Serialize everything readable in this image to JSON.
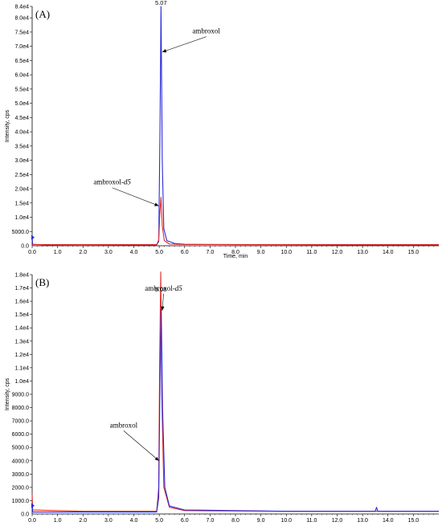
{
  "colors": {
    "blue": "#2a2ad8",
    "red": "#e02a2a",
    "axis": "#000000"
  },
  "chart_data": [
    {
      "type": "line",
      "panel_label": "(A)",
      "ylabel": "Intensity, cps",
      "xlabel": "Time, min",
      "xlim": [
        0,
        16
      ],
      "ylim": [
        0,
        84000
      ],
      "x_ticks": [
        0.0,
        1.0,
        2.0,
        3.0,
        4.0,
        5.0,
        6.0,
        7.0,
        8.0,
        9.0,
        10.0,
        11.0,
        12.0,
        13.0,
        14.0,
        15.0
      ],
      "x_tick_labels": [
        "0.0",
        "1.0",
        "2.0",
        "3.0",
        "4.0",
        "5.0",
        "6.0",
        "7.0",
        "8.0",
        "9.0",
        "10.0",
        "11.0",
        "12.0",
        "13.0",
        "14.0",
        "15.0"
      ],
      "y_ticks": [
        5000,
        10000,
        15000,
        20000,
        25000,
        30000,
        35000,
        40000,
        45000,
        50000,
        55000,
        60000,
        65000,
        70000,
        75000,
        80000,
        84000
      ],
      "y_tick_labels": [
        "5000.0",
        "1.0e4",
        "1.5e4",
        "2.0e4",
        "2.5e4",
        "3.0e4",
        "3.5e4",
        "4.0e4",
        "4.5e4",
        "5.0e4",
        "5.5e4",
        "6.0e4",
        "6.5e4",
        "7.0e4",
        "7.5e4",
        "8.0e4",
        "8.4e4"
      ],
      "peak_label": {
        "text": "5.07",
        "x": 5.07,
        "y": 84000
      },
      "series": [
        {
          "color": "#2a2ad8",
          "points": [
            [
              0,
              3000
            ],
            [
              0.02,
              500
            ],
            [
              0.5,
              300
            ],
            [
              2,
              350
            ],
            [
              4,
              300
            ],
            [
              4.9,
              300
            ],
            [
              4.98,
              1500
            ],
            [
              5.03,
              40000
            ],
            [
              5.07,
              84000
            ],
            [
              5.12,
              30000
            ],
            [
              5.18,
              6000
            ],
            [
              5.3,
              1800
            ],
            [
              5.6,
              800
            ],
            [
              6,
              500
            ],
            [
              8,
              400
            ],
            [
              10,
              350
            ],
            [
              12,
              300
            ],
            [
              14,
              300
            ],
            [
              16,
              300
            ]
          ]
        },
        {
          "color": "#e02a2a",
          "points": [
            [
              0,
              400
            ],
            [
              4.9,
              400
            ],
            [
              4.98,
              2000
            ],
            [
              5.03,
              12000
            ],
            [
              5.07,
              17000
            ],
            [
              5.12,
              7000
            ],
            [
              5.2,
              1800
            ],
            [
              5.4,
              600
            ],
            [
              6,
              450
            ],
            [
              10,
              400
            ],
            [
              16,
              400
            ]
          ]
        }
      ],
      "annotations": [
        {
          "text": "ambroxol",
          "subscript": "",
          "x_text": 6.85,
          "y_text": 74500,
          "x_arrow": 5.12,
          "y_arrow": 68000
        },
        {
          "text": "ambroxol-",
          "subscript": "d5",
          "x_text": 3.15,
          "y_text": 21500,
          "x_arrow": 4.98,
          "y_arrow": 14000
        }
      ]
    },
    {
      "type": "line",
      "panel_label": "(B)",
      "ylabel": "Intensity, cps",
      "xlabel": "",
      "xlim": [
        0,
        16
      ],
      "ylim": [
        0,
        18000
      ],
      "x_ticks": [
        0.0,
        1.0,
        2.0,
        3.0,
        4.0,
        5.0,
        6.0,
        7.0,
        8.0,
        9.0,
        10.0,
        11.0,
        12.0,
        13.0,
        14.0,
        15.0
      ],
      "x_tick_labels": [
        "0.0",
        "1.0",
        "2.0",
        "3.0",
        "4.0",
        "5.0",
        "6.0",
        "7.0",
        "8.0",
        "9.0",
        "10.0",
        "11.0",
        "12.0",
        "13.0",
        "14.0",
        "15.0"
      ],
      "y_ticks": [
        1000,
        2000,
        3000,
        4000,
        5000,
        6000,
        7000,
        8000,
        9000,
        10000,
        11000,
        12000,
        13000,
        14000,
        15000,
        16000,
        17000,
        18000
      ],
      "y_tick_labels": [
        "1000.0",
        "2000.0",
        "3000.0",
        "4000.0",
        "5000.0",
        "6000.0",
        "7000.0",
        "8000.0",
        "9000.0",
        "1.0e4",
        "1.1e4",
        "1.2e4",
        "1.3e4",
        "1.4e4",
        "1.5e4",
        "1.6e4",
        "1.7e4",
        "1.8e4"
      ],
      "peak_label": {
        "text": "5.08",
        "x": 5.06,
        "y": 16600
      },
      "series": [
        {
          "color": "#e02a2a",
          "points": [
            [
              0,
              1500
            ],
            [
              0.02,
              300
            ],
            [
              2,
              200
            ],
            [
              4.9,
              200
            ],
            [
              4.98,
              2000
            ],
            [
              5.02,
              12000
            ],
            [
              5.06,
              18200
            ],
            [
              5.1,
              9000
            ],
            [
              5.18,
              2000
            ],
            [
              5.4,
              500
            ],
            [
              6,
              250
            ],
            [
              10,
              200
            ],
            [
              16,
              200
            ]
          ]
        },
        {
          "color": "#2a2ad8",
          "points": [
            [
              0,
              800
            ],
            [
              0.02,
              150
            ],
            [
              2,
              150
            ],
            [
              4.9,
              150
            ],
            [
              4.98,
              1200
            ],
            [
              5.03,
              10000
            ],
            [
              5.08,
              15400
            ],
            [
              5.13,
              8000
            ],
            [
              5.22,
              2000
            ],
            [
              5.4,
              600
            ],
            [
              6,
              300
            ],
            [
              10,
              200
            ],
            [
              13.5,
              200
            ],
            [
              13.55,
              500
            ],
            [
              13.6,
              200
            ],
            [
              16,
              200
            ]
          ]
        }
      ],
      "annotations": [
        {
          "text": "ambroxol-",
          "subscript": "d5",
          "x_text": 5.17,
          "y_text": 16800,
          "x_arrow": 5.12,
          "y_arrow": 15300
        },
        {
          "text": "ambroxol",
          "subscript": "",
          "x_text": 3.6,
          "y_text": 6500,
          "x_arrow": 4.99,
          "y_arrow": 4000
        }
      ]
    }
  ]
}
